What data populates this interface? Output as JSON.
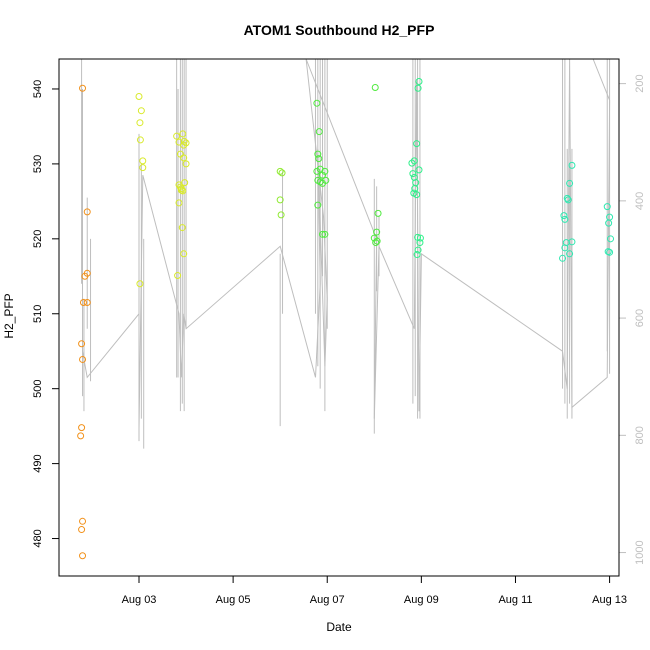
{
  "chart_data": {
    "type": "scatter",
    "title": "ATOM1 Southbound H2_PFP",
    "xlabel": "Date",
    "ylabel": "H2_PFP",
    "xlim": [
      1.3,
      13.2
    ],
    "ylim": [
      475,
      544
    ],
    "x_ticks": [
      {
        "x": 3,
        "label": "Aug 03"
      },
      {
        "x": 5,
        "label": "Aug 05"
      },
      {
        "x": 7,
        "label": "Aug 07"
      },
      {
        "x": 9,
        "label": "Aug 09"
      },
      {
        "x": 11,
        "label": "Aug 11"
      },
      {
        "x": 13,
        "label": "Aug 13"
      }
    ],
    "y_ticks": [
      480,
      490,
      500,
      510,
      520,
      530,
      540
    ],
    "y2_ticks": [
      200,
      400,
      600,
      800,
      1000
    ],
    "y2lim": [
      1040,
      158
    ],
    "grid": false,
    "legend": "none",
    "marker_colors": [
      "#f2911a",
      "#d9ea2b",
      "#8fea30",
      "#4fea3e",
      "#2ff08a",
      "#2ee8b0"
    ],
    "line_color": "#bebebe",
    "series": [
      {
        "color": "#f2911a",
        "points": [
          [
            1.8,
            540.1
          ],
          [
            1.9,
            523.6
          ],
          [
            1.9,
            515.4
          ],
          [
            1.85,
            515.0
          ],
          [
            1.82,
            511.5
          ],
          [
            1.9,
            511.5
          ],
          [
            1.78,
            506.0
          ],
          [
            1.8,
            503.9
          ],
          [
            1.78,
            494.8
          ],
          [
            1.76,
            493.7
          ],
          [
            1.8,
            482.3
          ],
          [
            1.78,
            481.2
          ],
          [
            1.8,
            477.7
          ]
        ]
      },
      {
        "color": "#d9ea2b",
        "points": [
          [
            3.0,
            539.0
          ],
          [
            3.05,
            537.1
          ],
          [
            3.02,
            535.5
          ],
          [
            3.03,
            533.2
          ],
          [
            3.08,
            530.4
          ],
          [
            3.08,
            529.5
          ],
          [
            3.02,
            514.0
          ],
          [
            3.8,
            533.7
          ],
          [
            3.85,
            532.9
          ],
          [
            3.93,
            534.0
          ],
          [
            3.95,
            532.5
          ],
          [
            4.0,
            532.8
          ],
          [
            3.88,
            531.3
          ],
          [
            3.95,
            530.8
          ],
          [
            4.0,
            530.0
          ],
          [
            3.85,
            527.2
          ],
          [
            3.9,
            526.7
          ],
          [
            3.93,
            526.4
          ],
          [
            3.97,
            527.5
          ],
          [
            3.88,
            526.9
          ],
          [
            3.85,
            524.8
          ],
          [
            3.92,
            521.5
          ],
          [
            3.95,
            518.0
          ],
          [
            3.82,
            515.1
          ],
          [
            3.9,
            526.5
          ],
          [
            3.96,
            533.0
          ]
        ]
      },
      {
        "color": "#8fea30",
        "points": [
          [
            6.0,
            529.0
          ],
          [
            6.04,
            528.8
          ],
          [
            6.0,
            525.2
          ],
          [
            6.02,
            523.2
          ]
        ]
      },
      {
        "color": "#4fea3e",
        "points": [
          [
            6.78,
            538.1
          ],
          [
            6.83,
            534.3
          ],
          [
            6.8,
            531.3
          ],
          [
            6.82,
            530.7
          ],
          [
            6.85,
            529.3
          ],
          [
            6.78,
            529.0
          ],
          [
            6.9,
            528.5
          ],
          [
            6.95,
            529.0
          ],
          [
            6.8,
            527.8
          ],
          [
            6.85,
            527.6
          ],
          [
            6.9,
            527.4
          ],
          [
            6.97,
            527.8
          ],
          [
            6.8,
            524.5
          ],
          [
            6.9,
            520.6
          ],
          [
            6.95,
            520.6
          ],
          [
            8.02,
            540.2
          ],
          [
            8.08,
            523.4
          ],
          [
            8.05,
            520.9
          ],
          [
            8.0,
            520.1
          ],
          [
            8.03,
            519.5
          ],
          [
            8.06,
            519.7
          ]
        ]
      },
      {
        "color": "#2ff08a",
        "points": [
          [
            8.95,
            541.0
          ],
          [
            8.93,
            540.1
          ],
          [
            8.9,
            532.7
          ],
          [
            8.85,
            530.4
          ],
          [
            8.8,
            530.1
          ],
          [
            8.95,
            529.2
          ],
          [
            8.82,
            528.7
          ],
          [
            8.85,
            528.2
          ],
          [
            8.88,
            527.5
          ],
          [
            8.86,
            526.7
          ],
          [
            8.84,
            526.1
          ],
          [
            8.9,
            525.9
          ],
          [
            8.92,
            520.2
          ],
          [
            8.98,
            520.1
          ],
          [
            8.97,
            519.5
          ],
          [
            8.93,
            518.5
          ],
          [
            8.91,
            517.9
          ]
        ]
      },
      {
        "color": "#2ee8b0",
        "points": [
          [
            12.2,
            529.8
          ],
          [
            12.15,
            527.4
          ],
          [
            12.1,
            525.4
          ],
          [
            12.12,
            525.2
          ],
          [
            12.03,
            523.1
          ],
          [
            12.05,
            522.6
          ],
          [
            12.08,
            519.5
          ],
          [
            12.2,
            519.6
          ],
          [
            12.05,
            518.8
          ],
          [
            12.15,
            518.0
          ],
          [
            12.0,
            517.4
          ],
          [
            12.95,
            524.3
          ],
          [
            13.0,
            522.9
          ],
          [
            12.98,
            522.1
          ],
          [
            13.02,
            520.0
          ],
          [
            12.97,
            518.3
          ],
          [
            13.0,
            518.2
          ]
        ]
      }
    ],
    "line_path": [
      [
        1.8,
        540
      ],
      [
        1.8,
        505
      ],
      [
        1.9,
        501.5
      ],
      [
        3.0,
        510
      ],
      [
        3.0,
        494.5
      ],
      [
        3.08,
        528.5
      ],
      [
        3.85,
        510
      ],
      [
        3.9,
        501.5
      ],
      [
        3.95,
        510
      ],
      [
        4.0,
        508
      ],
      [
        6.0,
        519
      ],
      [
        6.75,
        501.5
      ],
      [
        6.85,
        514
      ],
      [
        6.8,
        532
      ],
      [
        6.95,
        503
      ],
      [
        7.0,
        512
      ],
      [
        6.92,
        523
      ],
      [
        6.55,
        544
      ],
      [
        8.05,
        520
      ],
      [
        8.0,
        496
      ],
      [
        8.1,
        519
      ],
      [
        8.85,
        508
      ],
      [
        8.9,
        541
      ],
      [
        8.95,
        497
      ],
      [
        9.0,
        518
      ],
      [
        12.0,
        505
      ],
      [
        12.1,
        500
      ],
      [
        12.15,
        544
      ],
      [
        12.2,
        497.5
      ],
      [
        12.95,
        501.5
      ],
      [
        13.0,
        538.5
      ],
      [
        12.65,
        544
      ]
    ],
    "vertical_segments": [
      [
        1.78,
        544,
        514
      ],
      [
        1.8,
        514,
        499
      ],
      [
        1.83,
        512,
        497
      ],
      [
        1.9,
        525.5,
        508
      ],
      [
        1.97,
        520,
        501
      ],
      [
        3.0,
        534,
        493
      ],
      [
        3.05,
        530,
        496
      ],
      [
        3.1,
        520,
        492
      ],
      [
        3.8,
        544,
        501.5
      ],
      [
        3.83,
        540,
        501.5
      ],
      [
        3.88,
        544,
        497
      ],
      [
        3.92,
        544,
        498
      ],
      [
        3.96,
        544,
        497
      ],
      [
        4.0,
        544,
        508
      ],
      [
        6.0,
        518,
        495
      ],
      [
        6.05,
        529,
        510
      ],
      [
        6.75,
        544,
        510
      ],
      [
        6.8,
        544,
        503
      ],
      [
        6.85,
        544,
        500
      ],
      [
        6.9,
        544,
        515
      ],
      [
        6.95,
        544,
        497
      ],
      [
        7.0,
        544,
        508
      ],
      [
        8.0,
        528,
        494
      ],
      [
        8.05,
        527,
        513
      ],
      [
        8.1,
        523,
        515
      ],
      [
        8.82,
        544,
        498
      ],
      [
        8.87,
        544,
        499
      ],
      [
        8.92,
        544,
        496
      ],
      [
        8.97,
        544,
        496
      ],
      [
        12.0,
        544,
        500
      ],
      [
        12.05,
        544,
        498
      ],
      [
        12.1,
        532,
        496
      ],
      [
        12.15,
        530,
        498
      ],
      [
        12.2,
        532,
        496
      ],
      [
        12.95,
        544,
        505
      ],
      [
        13.0,
        544,
        502
      ]
    ]
  }
}
